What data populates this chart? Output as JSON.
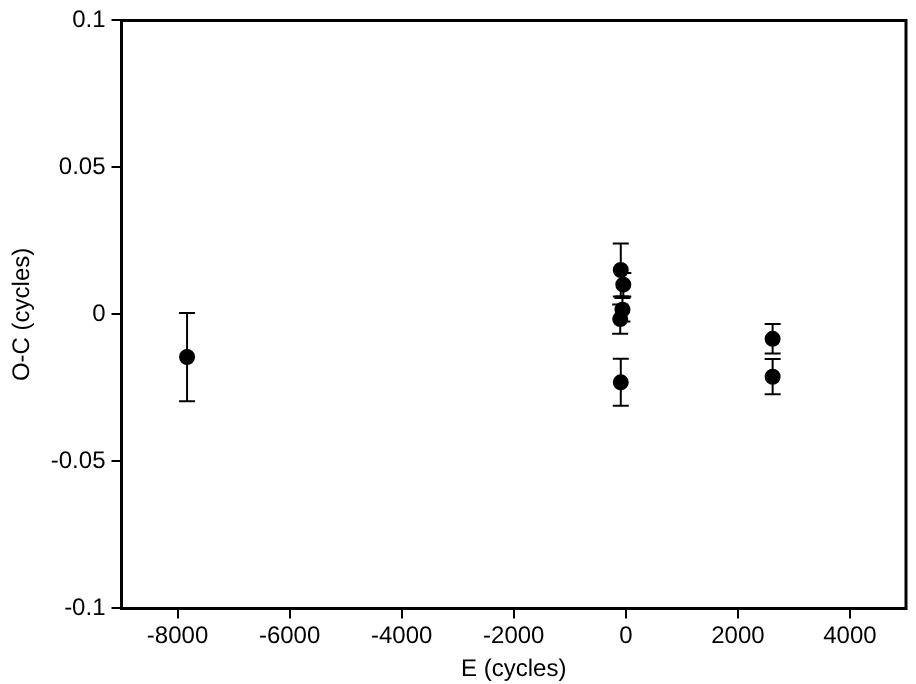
{
  "chart_data": {
    "type": "scatter",
    "xlabel": "E (cycles)",
    "ylabel": "O-C (cycles)",
    "x": [
      -7830,
      -90,
      -45,
      -60,
      -100,
      -90,
      2620,
      2620
    ],
    "values": [
      -0.0145,
      0.0151,
      0.0101,
      0.0016,
      -0.0016,
      -0.0231,
      -0.0083,
      -0.0212
    ],
    "errors": [
      0.015,
      0.009,
      0.004,
      0.004,
      0.005,
      0.008,
      0.005,
      0.006
    ],
    "color": "#000000",
    "marker": "circle",
    "xlim": [
      -9000,
      5000
    ],
    "xticks": [
      -8000,
      -6000,
      -4000,
      -2000,
      0,
      2000,
      4000
    ],
    "ylim": [
      -0.1,
      0.1
    ],
    "yticks": [
      -0.1,
      -0.05,
      0,
      0.05,
      0.1
    ],
    "grid": false,
    "legend": false
  }
}
